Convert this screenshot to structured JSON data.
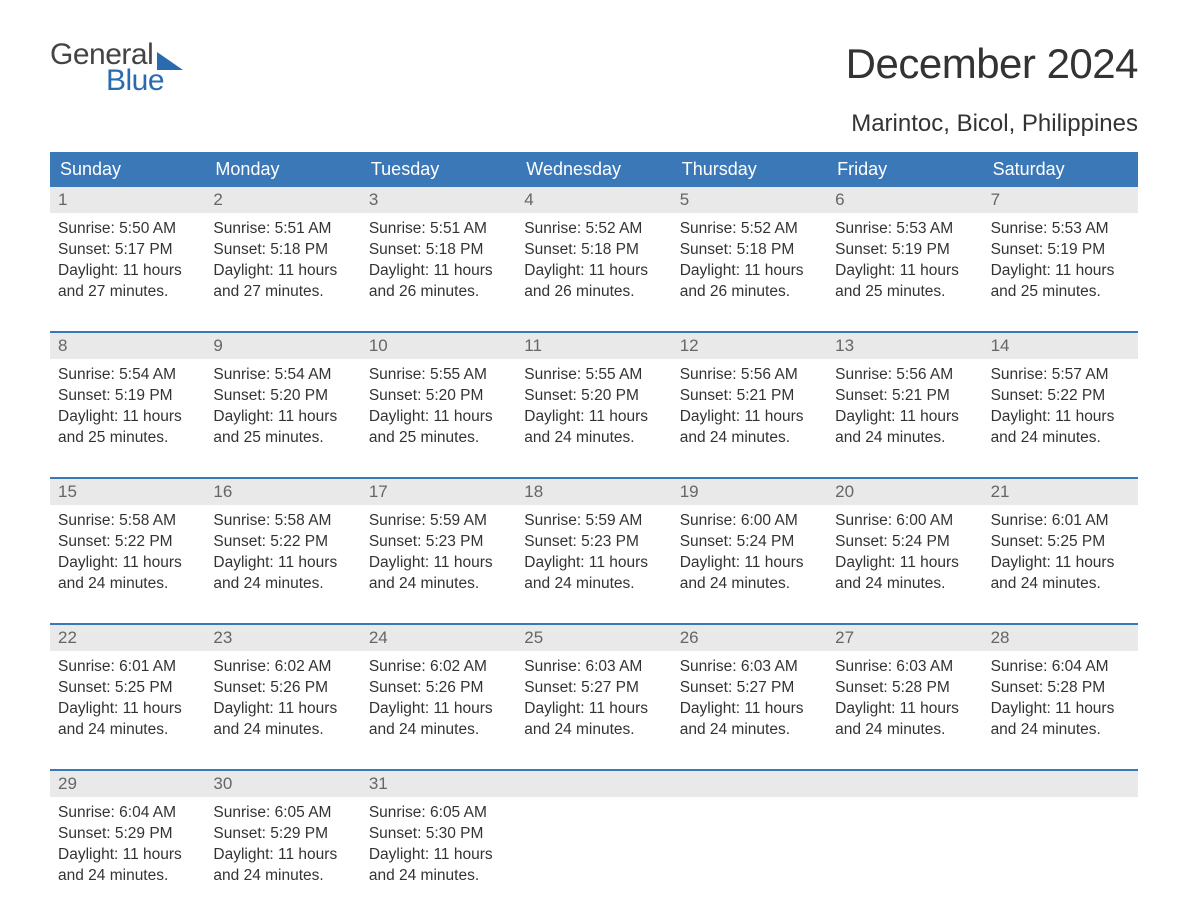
{
  "logo": {
    "top": "General",
    "bottom": "Blue"
  },
  "title": "December 2024",
  "location": "Marintoc, Bicol, Philippines",
  "colors": {
    "header_bg": "#3a78b8",
    "header_fg": "#ffffff",
    "daynum_bg": "#e9e9e9",
    "daynum_fg": "#666666",
    "body_fg": "#333333",
    "logo_blue": "#2a6bb0",
    "week_border": "#3a78b8",
    "page_bg": "#ffffff"
  },
  "fonts": {
    "title_size": 42,
    "location_size": 24,
    "header_size": 18,
    "daynum_size": 17,
    "cell_size": 15.5
  },
  "day_names": [
    "Sunday",
    "Monday",
    "Tuesday",
    "Wednesday",
    "Thursday",
    "Friday",
    "Saturday"
  ],
  "weeks": [
    [
      {
        "n": "1",
        "sr": "5:50 AM",
        "ss": "5:17 PM",
        "dl": "11 hours and 27 minutes."
      },
      {
        "n": "2",
        "sr": "5:51 AM",
        "ss": "5:18 PM",
        "dl": "11 hours and 27 minutes."
      },
      {
        "n": "3",
        "sr": "5:51 AM",
        "ss": "5:18 PM",
        "dl": "11 hours and 26 minutes."
      },
      {
        "n": "4",
        "sr": "5:52 AM",
        "ss": "5:18 PM",
        "dl": "11 hours and 26 minutes."
      },
      {
        "n": "5",
        "sr": "5:52 AM",
        "ss": "5:18 PM",
        "dl": "11 hours and 26 minutes."
      },
      {
        "n": "6",
        "sr": "5:53 AM",
        "ss": "5:19 PM",
        "dl": "11 hours and 25 minutes."
      },
      {
        "n": "7",
        "sr": "5:53 AM",
        "ss": "5:19 PM",
        "dl": "11 hours and 25 minutes."
      }
    ],
    [
      {
        "n": "8",
        "sr": "5:54 AM",
        "ss": "5:19 PM",
        "dl": "11 hours and 25 minutes."
      },
      {
        "n": "9",
        "sr": "5:54 AM",
        "ss": "5:20 PM",
        "dl": "11 hours and 25 minutes."
      },
      {
        "n": "10",
        "sr": "5:55 AM",
        "ss": "5:20 PM",
        "dl": "11 hours and 25 minutes."
      },
      {
        "n": "11",
        "sr": "5:55 AM",
        "ss": "5:20 PM",
        "dl": "11 hours and 24 minutes."
      },
      {
        "n": "12",
        "sr": "5:56 AM",
        "ss": "5:21 PM",
        "dl": "11 hours and 24 minutes."
      },
      {
        "n": "13",
        "sr": "5:56 AM",
        "ss": "5:21 PM",
        "dl": "11 hours and 24 minutes."
      },
      {
        "n": "14",
        "sr": "5:57 AM",
        "ss": "5:22 PM",
        "dl": "11 hours and 24 minutes."
      }
    ],
    [
      {
        "n": "15",
        "sr": "5:58 AM",
        "ss": "5:22 PM",
        "dl": "11 hours and 24 minutes."
      },
      {
        "n": "16",
        "sr": "5:58 AM",
        "ss": "5:22 PM",
        "dl": "11 hours and 24 minutes."
      },
      {
        "n": "17",
        "sr": "5:59 AM",
        "ss": "5:23 PM",
        "dl": "11 hours and 24 minutes."
      },
      {
        "n": "18",
        "sr": "5:59 AM",
        "ss": "5:23 PM",
        "dl": "11 hours and 24 minutes."
      },
      {
        "n": "19",
        "sr": "6:00 AM",
        "ss": "5:24 PM",
        "dl": "11 hours and 24 minutes."
      },
      {
        "n": "20",
        "sr": "6:00 AM",
        "ss": "5:24 PM",
        "dl": "11 hours and 24 minutes."
      },
      {
        "n": "21",
        "sr": "6:01 AM",
        "ss": "5:25 PM",
        "dl": "11 hours and 24 minutes."
      }
    ],
    [
      {
        "n": "22",
        "sr": "6:01 AM",
        "ss": "5:25 PM",
        "dl": "11 hours and 24 minutes."
      },
      {
        "n": "23",
        "sr": "6:02 AM",
        "ss": "5:26 PM",
        "dl": "11 hours and 24 minutes."
      },
      {
        "n": "24",
        "sr": "6:02 AM",
        "ss": "5:26 PM",
        "dl": "11 hours and 24 minutes."
      },
      {
        "n": "25",
        "sr": "6:03 AM",
        "ss": "5:27 PM",
        "dl": "11 hours and 24 minutes."
      },
      {
        "n": "26",
        "sr": "6:03 AM",
        "ss": "5:27 PM",
        "dl": "11 hours and 24 minutes."
      },
      {
        "n": "27",
        "sr": "6:03 AM",
        "ss": "5:28 PM",
        "dl": "11 hours and 24 minutes."
      },
      {
        "n": "28",
        "sr": "6:04 AM",
        "ss": "5:28 PM",
        "dl": "11 hours and 24 minutes."
      }
    ],
    [
      {
        "n": "29",
        "sr": "6:04 AM",
        "ss": "5:29 PM",
        "dl": "11 hours and 24 minutes."
      },
      {
        "n": "30",
        "sr": "6:05 AM",
        "ss": "5:29 PM",
        "dl": "11 hours and 24 minutes."
      },
      {
        "n": "31",
        "sr": "6:05 AM",
        "ss": "5:30 PM",
        "dl": "11 hours and 24 minutes."
      },
      null,
      null,
      null,
      null
    ]
  ],
  "labels": {
    "sunrise": "Sunrise:",
    "sunset": "Sunset:",
    "daylight": "Daylight:"
  }
}
